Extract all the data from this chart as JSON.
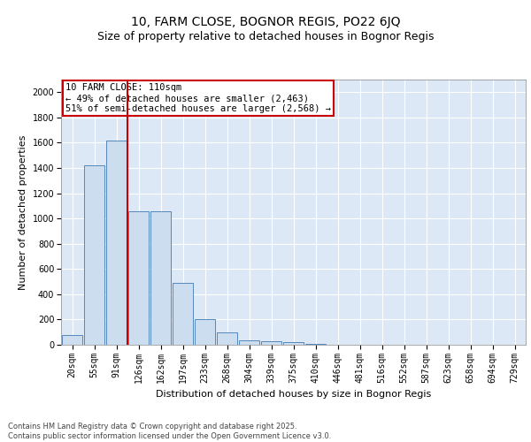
{
  "title1": "10, FARM CLOSE, BOGNOR REGIS, PO22 6JQ",
  "title2": "Size of property relative to detached houses in Bognor Regis",
  "xlabel": "Distribution of detached houses by size in Bognor Regis",
  "ylabel": "Number of detached properties",
  "categories": [
    "20sqm",
    "55sqm",
    "91sqm",
    "126sqm",
    "162sqm",
    "197sqm",
    "233sqm",
    "268sqm",
    "304sqm",
    "339sqm",
    "375sqm",
    "410sqm",
    "446sqm",
    "481sqm",
    "516sqm",
    "552sqm",
    "587sqm",
    "623sqm",
    "658sqm",
    "694sqm",
    "729sqm"
  ],
  "values": [
    80,
    1420,
    1620,
    1060,
    1055,
    490,
    205,
    100,
    38,
    28,
    18,
    5,
    0,
    0,
    0,
    0,
    0,
    0,
    0,
    0,
    0
  ],
  "bar_color": "#ccddf0",
  "bar_edge_color": "#5588bb",
  "vline_color": "#cc0000",
  "vline_x_index": 2.5,
  "annotation_text": "10 FARM CLOSE: 110sqm\n← 49% of detached houses are smaller (2,463)\n51% of semi-detached houses are larger (2,568) →",
  "annotation_box_color": "#cc0000",
  "ylim": [
    0,
    2100
  ],
  "yticks": [
    0,
    200,
    400,
    600,
    800,
    1000,
    1200,
    1400,
    1600,
    1800,
    2000
  ],
  "bg_color": "#dce8f5",
  "grid_color": "#ffffff",
  "footer_text": "Contains HM Land Registry data © Crown copyright and database right 2025.\nContains public sector information licensed under the Open Government Licence v3.0.",
  "title_fontsize": 10,
  "subtitle_fontsize": 9,
  "axis_label_fontsize": 8,
  "tick_fontsize": 7,
  "annotation_fontsize": 7.5
}
